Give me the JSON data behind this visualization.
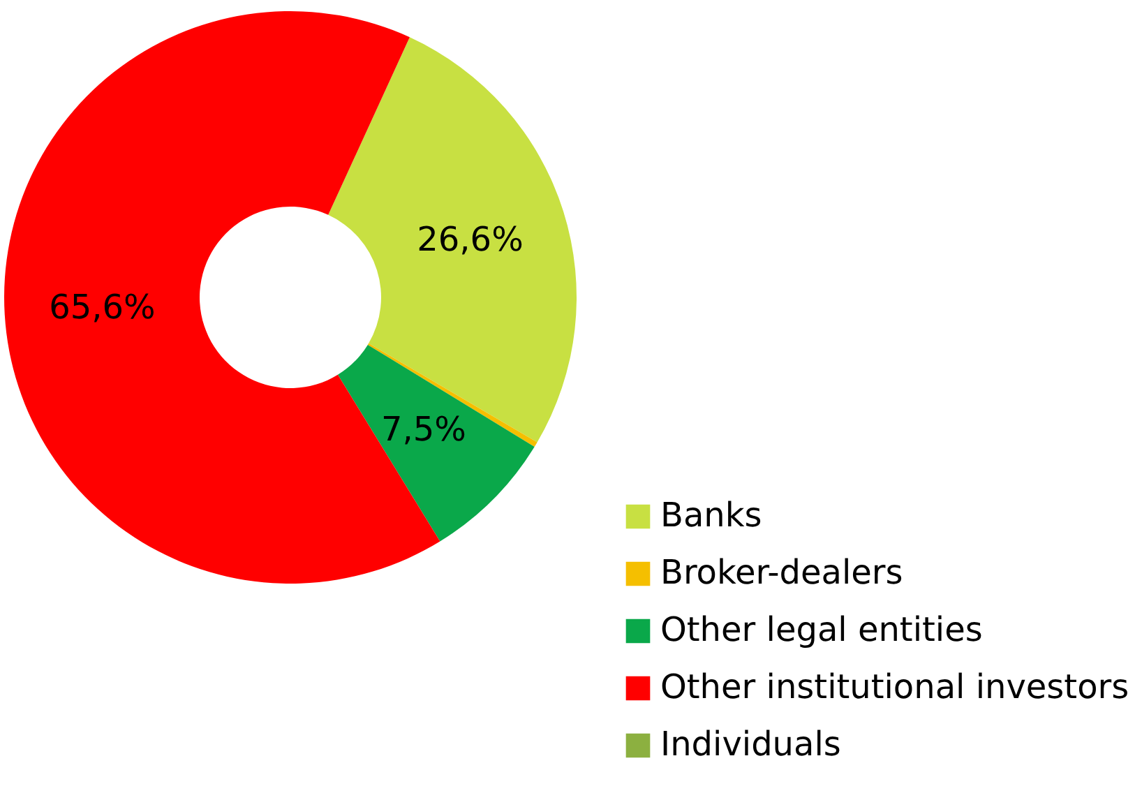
{
  "chart_data": {
    "type": "donut",
    "categories": [
      "Banks",
      "Broker-dealers",
      "Other legal entities",
      "Other institutional investors",
      "Individuals"
    ],
    "values": [
      26.6,
      0.3,
      7.5,
      65.6,
      0
    ],
    "colors": [
      "#c8e042",
      "#f5bf00",
      "#0aa84a",
      "#ff0000",
      "#8cb040"
    ],
    "value_labels": [
      "26,6%",
      null,
      "7,5%",
      "65,6%",
      null
    ],
    "legend": "bottom right"
  }
}
